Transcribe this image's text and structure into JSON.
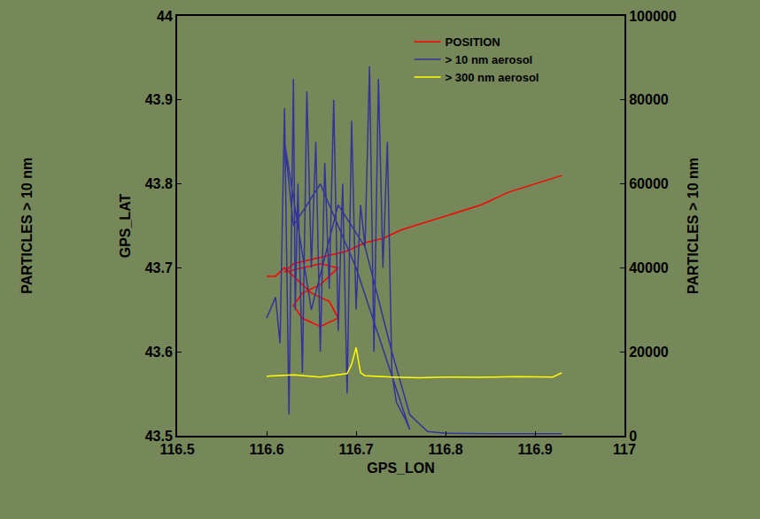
{
  "chart_data": {
    "type": "line",
    "x_label": "GPS_LON",
    "y_label": "GPS_LAT",
    "y2_label": "PARTICLES > 10 nm",
    "annotations": [
      {
        "text": "PARTICLES > 10 nm"
      }
    ],
    "xlim": [
      116.5,
      117
    ],
    "xticks": [
      116.5,
      116.6,
      116.7,
      116.8,
      116.9,
      117
    ],
    "ylim": [
      43.5,
      44
    ],
    "yticks": [
      43.5,
      43.6,
      43.7,
      43.8,
      43.9,
      44
    ],
    "y2lim": [
      0,
      100000
    ],
    "y2ticks": [
      0,
      20000,
      40000,
      60000,
      80000,
      100000
    ],
    "grid": false,
    "legend": "top",
    "series": [
      {
        "name": "POSITION",
        "color": "#ff0000",
        "axis": "y",
        "x": [
          116.6,
          116.61,
          116.62,
          116.63,
          116.64,
          116.65,
          116.66,
          116.67,
          116.68,
          116.66,
          116.64,
          116.63,
          116.64,
          116.66,
          116.67,
          116.68,
          116.66,
          116.64,
          116.62,
          116.63,
          116.65,
          116.67,
          116.69,
          116.71,
          116.73,
          116.75,
          116.78,
          116.81,
          116.84,
          116.87,
          116.9,
          116.93
        ],
        "values": [
          43.69,
          43.69,
          43.7,
          43.69,
          43.68,
          43.67,
          43.665,
          43.66,
          43.64,
          43.63,
          43.64,
          43.655,
          43.67,
          43.68,
          43.69,
          43.7,
          43.705,
          43.7,
          43.695,
          43.705,
          43.71,
          43.715,
          43.72,
          43.73,
          43.735,
          43.745,
          43.755,
          43.765,
          43.775,
          43.79,
          43.8,
          43.81
        ]
      },
      {
        "name": "> 10 nm aerosol",
        "color": "#333399",
        "axis": "y2",
        "x": [
          116.6,
          116.61,
          116.615,
          116.62,
          116.625,
          116.63,
          116.632,
          116.635,
          116.64,
          116.645,
          116.65,
          116.655,
          116.66,
          116.665,
          116.67,
          116.675,
          116.68,
          116.685,
          116.69,
          116.695,
          116.7,
          116.705,
          116.71,
          116.715,
          116.72,
          116.725,
          116.73,
          116.735,
          116.74,
          116.745,
          116.75,
          116.755,
          116.76,
          116.7,
          116.66,
          116.63,
          116.62,
          116.65,
          116.68,
          116.71,
          116.74,
          116.76,
          116.78,
          116.8,
          116.85,
          116.9,
          116.93
        ],
        "values": [
          28000,
          33000,
          22000,
          78000,
          5000,
          85000,
          30000,
          60000,
          15000,
          82000,
          40000,
          70000,
          20000,
          65000,
          35000,
          80000,
          25000,
          60000,
          10000,
          75000,
          30000,
          55000,
          45000,
          88000,
          20000,
          85000,
          40000,
          70000,
          15000,
          8000,
          6000,
          4000,
          1500,
          40000,
          60000,
          50000,
          70000,
          30000,
          55000,
          45000,
          20000,
          5000,
          1000,
          600,
          500,
          500,
          500
        ]
      },
      {
        "name": "> 300 nm aerosol",
        "color": "#ffff00",
        "axis": "y2",
        "x": [
          116.6,
          116.63,
          116.66,
          116.69,
          116.695,
          116.7,
          116.705,
          116.71,
          116.74,
          116.77,
          116.8,
          116.84,
          116.88,
          116.92,
          116.93
        ],
        "values": [
          14200,
          14500,
          14000,
          14800,
          17000,
          21000,
          15000,
          14300,
          14000,
          13800,
          14000,
          13900,
          14100,
          14000,
          15000
        ]
      }
    ]
  }
}
